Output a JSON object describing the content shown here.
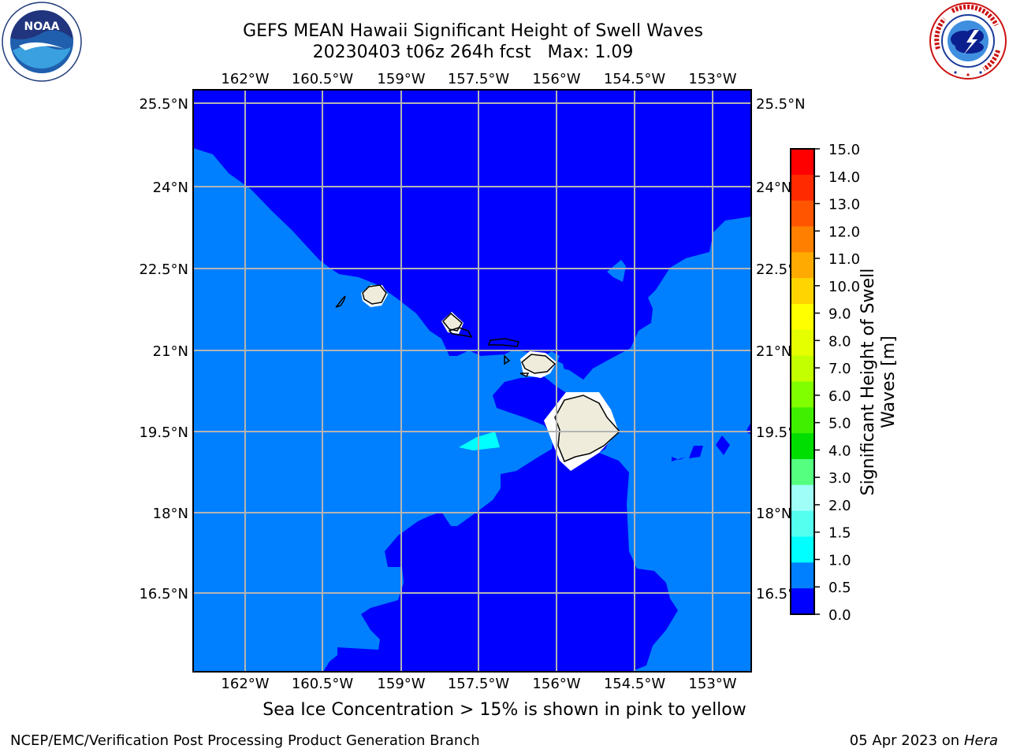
{
  "title": {
    "line1": "GEFS MEAN Hawaii Significant Height of Swell Waves",
    "line2": "20230403 t06z 264h fcst   Max: 1.09"
  },
  "map": {
    "lon_labels": [
      "162°W",
      "160.5°W",
      "159°W",
      "157.5°W",
      "156°W",
      "154.5°W",
      "153°W"
    ],
    "lat_labels": [
      "25.5°N",
      "24°N",
      "22.5°N",
      "21°N",
      "19.5°N",
      "18°N",
      "16.5°N"
    ]
  },
  "colorbar": {
    "label_line1": "Significant Height of Swell",
    "label_line2": "Waves [m]",
    "ticks": [
      "15.0",
      "14.0",
      "13.0",
      "12.0",
      "11.0",
      "10.0",
      "9.0",
      "8.0",
      "7.0",
      "6.0",
      "5.0",
      "4.0",
      "3.0",
      "2.0",
      "1.5",
      "1.0",
      "0.5",
      "0.0"
    ],
    "colors": [
      "#ff0000",
      "#ff2a00",
      "#ff5500",
      "#ff8000",
      "#ffaa00",
      "#ffd400",
      "#ffff00",
      "#e5ff00",
      "#c4ff00",
      "#80ff00",
      "#40ee00",
      "#00dd00",
      "#55ff80",
      "#9ffff8",
      "#55fff0",
      "#00ffff",
      "#0080ff",
      "#0000ff"
    ],
    "theme": {
      "deep": "#0000ff",
      "mid": "#0080ff",
      "light": "#00ffff",
      "land": "#efecdc"
    }
  },
  "caption": "Sea Ice Concentration > 15% is shown in pink to yellow",
  "footer": {
    "left": "NCEP/EMC/Verification Post Processing Product Generation Branch",
    "right_date": "05 Apr 2023 on ",
    "right_host": "Hera"
  }
}
